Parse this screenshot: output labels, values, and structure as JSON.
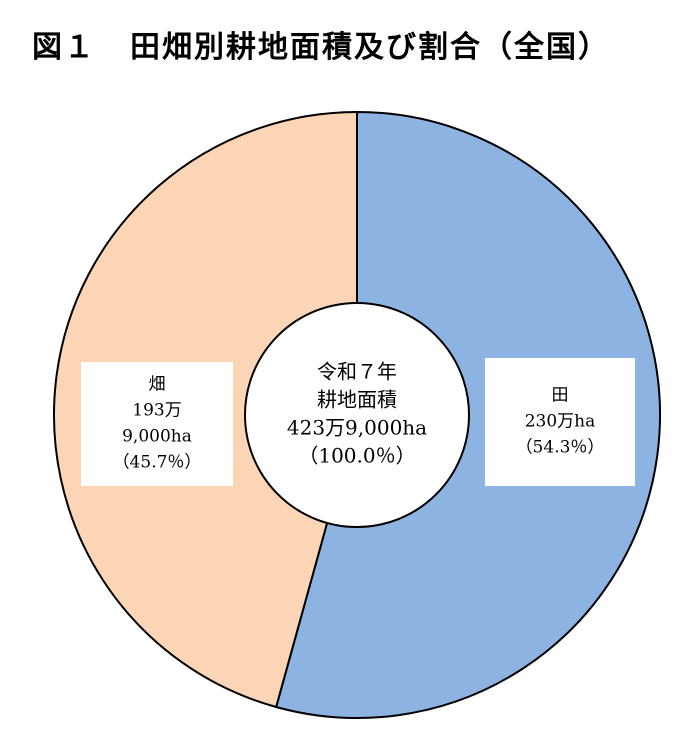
{
  "title": {
    "figure_number": "図１",
    "text": "田畑別耕地面積及び割合（全国）"
  },
  "chart_data": {
    "type": "pie",
    "donut": true,
    "title": "田畑別耕地面積及び割合（全国）",
    "center_label": [
      "令和７年",
      "耕地面積",
      "423万9,000ha",
      "（100.0％）"
    ],
    "slices": [
      {
        "category": "田",
        "value": 54.3,
        "label_lines": [
          "田",
          "230万ha",
          "（54.3％）"
        ],
        "color": "#8db3e2"
      },
      {
        "category": "畑",
        "value": 45.7,
        "label_lines": [
          "畑",
          "193万",
          "9,000ha",
          "（45.7％）"
        ],
        "color": "#fbd5b5"
      }
    ]
  }
}
